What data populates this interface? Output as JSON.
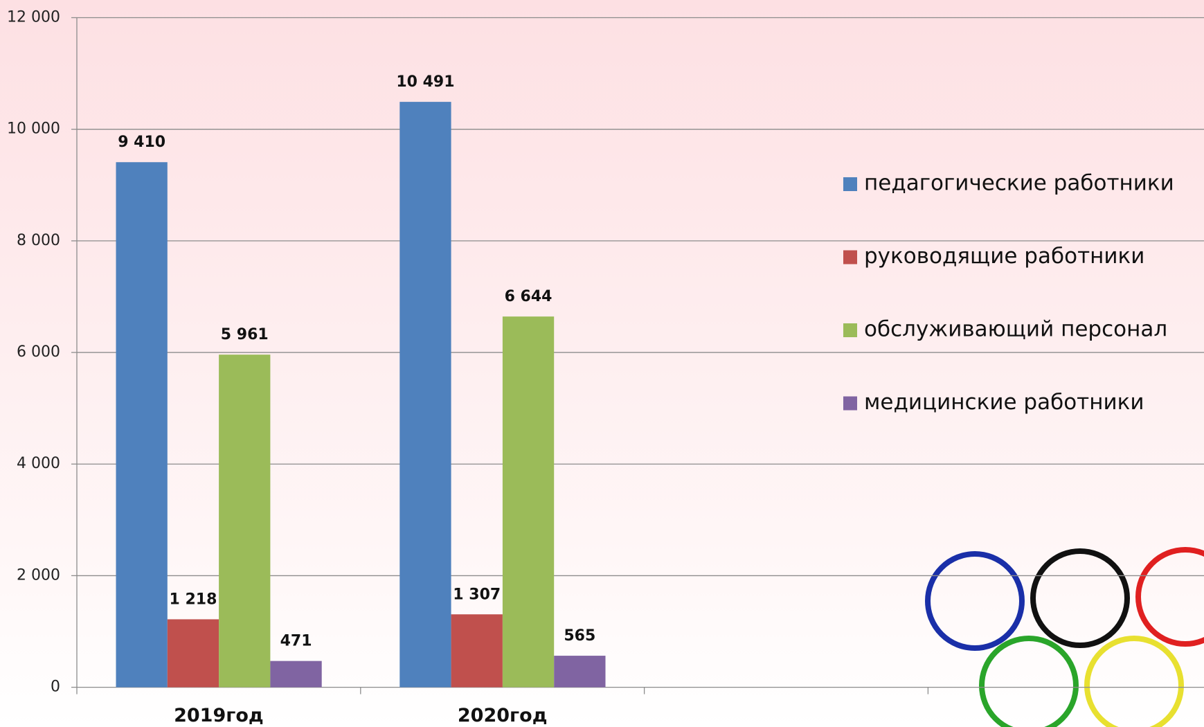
{
  "chart_data": {
    "type": "bar",
    "categories": [
      "2019год",
      "2020год",
      null,
      null
    ],
    "series": [
      {
        "name": "педагогические работники",
        "color": "#4f81bd",
        "values": [
          9410,
          10491,
          null,
          null
        ],
        "value_labels": [
          "9 410",
          "10 491",
          null,
          null
        ]
      },
      {
        "name": "руководящие работники",
        "color": "#c0504d",
        "values": [
          1218,
          1307,
          null,
          null
        ],
        "value_labels": [
          "1 218",
          "1 307",
          null,
          null
        ]
      },
      {
        "name": "обслуживающий персонал",
        "color": "#9bbb59",
        "values": [
          5961,
          6644,
          null,
          null
        ],
        "value_labels": [
          "5 961",
          "6 644",
          null,
          null
        ]
      },
      {
        "name": "медицинские работники",
        "color": "#8064a2",
        "values": [
          471,
          565,
          null,
          null
        ]
      }
    ],
    "ylim": [
      0,
      12000
    ],
    "yticks": [
      0,
      {
        "value": 2000,
        "label": "2 000"
      },
      {
        "value": 4000,
        "label": "4 000"
      },
      {
        "value": 6000,
        "label": "6 000"
      },
      {
        "value": 8000,
        "label": "8 000"
      },
      {
        "value": 10000,
        "label": "10 000"
      },
      {
        "value": 12000,
        "label": "12 000"
      }
    ],
    "grid": true,
    "legend": "right"
  }
}
